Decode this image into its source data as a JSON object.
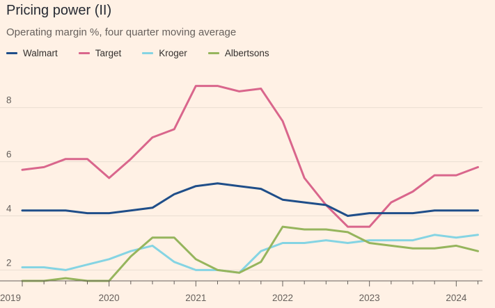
{
  "chart_data": {
    "type": "line",
    "title": "Pricing power (II)",
    "subtitle": "Operating margin %, four quarter moving average",
    "x": [
      2019.0,
      2019.25,
      2019.5,
      2019.75,
      2020.0,
      2020.25,
      2020.5,
      2020.75,
      2021.0,
      2021.25,
      2021.5,
      2021.75,
      2022.0,
      2022.25,
      2022.5,
      2022.75,
      2023.0,
      2023.25,
      2023.5,
      2023.75,
      2024.0,
      2024.25
    ],
    "series": [
      {
        "name": "Walmart",
        "color": "#1f4e89",
        "values": [
          4.2,
          4.2,
          4.2,
          4.1,
          4.1,
          4.2,
          4.3,
          4.8,
          5.1,
          5.2,
          5.1,
          5.0,
          4.6,
          4.5,
          4.4,
          4.0,
          4.1,
          4.1,
          4.1,
          4.2,
          4.2,
          4.2
        ]
      },
      {
        "name": "Target",
        "color": "#d9668c",
        "values": [
          5.7,
          5.8,
          6.1,
          6.1,
          5.4,
          6.1,
          6.9,
          7.2,
          8.8,
          8.8,
          8.6,
          8.7,
          7.5,
          5.4,
          4.4,
          3.6,
          3.6,
          4.5,
          4.9,
          5.5,
          5.5,
          5.8
        ]
      },
      {
        "name": "Kroger",
        "color": "#85d4e3",
        "values": [
          2.1,
          2.1,
          2.0,
          2.2,
          2.4,
          2.7,
          2.9,
          2.3,
          2.0,
          2.0,
          1.9,
          2.7,
          3.0,
          3.0,
          3.1,
          3.0,
          3.1,
          3.1,
          3.1,
          3.3,
          3.2,
          3.3
        ]
      },
      {
        "name": "Albertsons",
        "color": "#96b55d",
        "values": [
          1.6,
          1.6,
          1.7,
          1.6,
          1.6,
          2.5,
          3.2,
          3.2,
          2.4,
          2.0,
          1.9,
          2.3,
          3.6,
          3.5,
          3.5,
          3.4,
          3.0,
          2.9,
          2.8,
          2.8,
          2.9,
          2.7
        ]
      }
    ],
    "ylim": [
      1.6,
      9.2
    ],
    "y_ticks": [
      2,
      4,
      6,
      8
    ],
    "y_tick_labels": [
      "2",
      "4",
      "6",
      "8"
    ],
    "xlim": [
      2019.0,
      2024.27
    ],
    "x_ticks": [
      2019,
      2020,
      2021,
      2022,
      2023,
      2024
    ],
    "x_tick_labels": [
      "2019",
      "2020",
      "2021",
      "2022",
      "2023",
      "2024"
    ],
    "grid": true,
    "legend_position": "top-left",
    "grid_color": "#e9ddd2",
    "axis_color": "#66605c"
  }
}
